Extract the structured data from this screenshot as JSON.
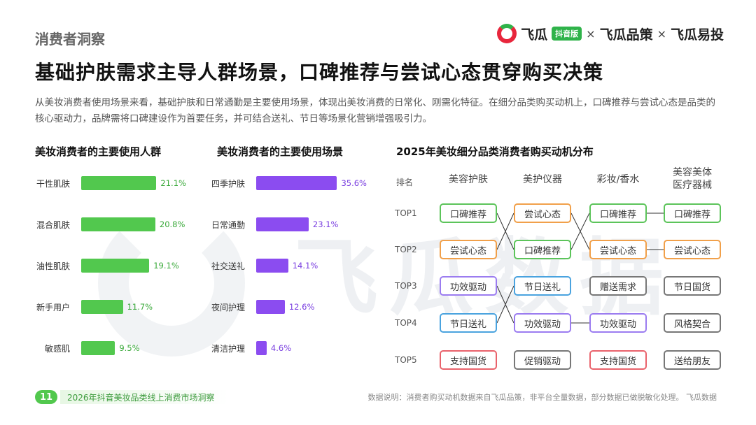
{
  "header": {
    "section_tag": "消费者洞察",
    "logo": {
      "part1": "飞瓜",
      "badge": "抖音版",
      "sep1": "×",
      "part2": "飞瓜品策",
      "sep2": "×",
      "part3": "飞瓜易投"
    },
    "headline": "基础护肤需求主导人群场景，口碑推荐与尝试心态贯穿购买决策",
    "intro": "从美妆消费者使用场景来看，基础护肤和日常通勤是主要使用场景，体现出美妆消费的日常化、刚需化特征。在细分品类购买动机上，口碑推荐与尝试心态是品类的核心驱动力，品牌需将口碑建设作为首要任务，并可结合送礼、节日等场景化营销增强吸引力。"
  },
  "watermark": "飞瓜数据",
  "colors": {
    "green": "#52c84e",
    "purple": "#8b4cf0",
    "brand_red": "#e8263c"
  },
  "chart_data": [
    {
      "type": "bar",
      "orientation": "horizontal",
      "title": "美妆消费者的主要使用人群",
      "categories": [
        "干性肌肤",
        "混合肌肤",
        "油性肌肤",
        "新手用户",
        "敏感肌"
      ],
      "values": [
        21.1,
        20.8,
        19.1,
        11.7,
        9.5
      ],
      "value_labels": [
        "21.1%",
        "20.8%",
        "19.1%",
        "11.7%",
        "9.5%"
      ],
      "color": "#52c84e",
      "xlim": [
        0,
        22
      ]
    },
    {
      "type": "bar",
      "orientation": "horizontal",
      "title": "美妆消费者的主要使用场景",
      "categories": [
        "四季护肤",
        "日常通勤",
        "社交送礼",
        "夜间护理",
        "清洁护理"
      ],
      "values": [
        35.6,
        23.1,
        14.1,
        12.6,
        4.6
      ],
      "value_labels": [
        "35.6%",
        "23.1%",
        "14.1%",
        "12.6%",
        "4.6%"
      ],
      "color": "#8b4cf0",
      "xlim": [
        0,
        37
      ]
    },
    {
      "type": "table",
      "title": "2025年美妆细分品类消费者购买动机分布",
      "rank_header": "排名",
      "columns": [
        "美容护肤",
        "美护仪器",
        "彩妆/香水",
        "美容美体\n医疗器械"
      ],
      "ranks": [
        "TOP1",
        "TOP2",
        "TOP3",
        "TOP4",
        "TOP5"
      ],
      "cells": [
        [
          {
            "t": "口碑推荐",
            "c": "green"
          },
          {
            "t": "尝试心态",
            "c": "orange"
          },
          {
            "t": "口碑推荐",
            "c": "green"
          },
          {
            "t": "口碑推荐",
            "c": "green"
          }
        ],
        [
          {
            "t": "尝试心态",
            "c": "orange"
          },
          {
            "t": "口碑推荐",
            "c": "green"
          },
          {
            "t": "尝试心态",
            "c": "orange"
          },
          {
            "t": "尝试心态",
            "c": "orange"
          }
        ],
        [
          {
            "t": "功效驱动",
            "c": "purple"
          },
          {
            "t": "节日送礼",
            "c": "blue"
          },
          {
            "t": "赠送需求",
            "c": "gray"
          },
          {
            "t": "节日国货",
            "c": "gray"
          }
        ],
        [
          {
            "t": "节日送礼",
            "c": "blue"
          },
          {
            "t": "功效驱动",
            "c": "purple"
          },
          {
            "t": "功效驱动",
            "c": "purple"
          },
          {
            "t": "风格契合",
            "c": "gray"
          }
        ],
        [
          {
            "t": "支持国货",
            "c": "red"
          },
          {
            "t": "促销驱动",
            "c": "gray"
          },
          {
            "t": "支持国货",
            "c": "red"
          },
          {
            "t": "送给朋友",
            "c": "gray"
          }
        ]
      ]
    }
  ],
  "footer": {
    "page_number": "11",
    "report_title": "2026年抖音美妆品类线上消费市场洞察",
    "note": "数据说明：消费者购买动机数据来自飞瓜品策，非平台全量数据，部分数据已做脱敏化处理。 飞瓜数据"
  }
}
